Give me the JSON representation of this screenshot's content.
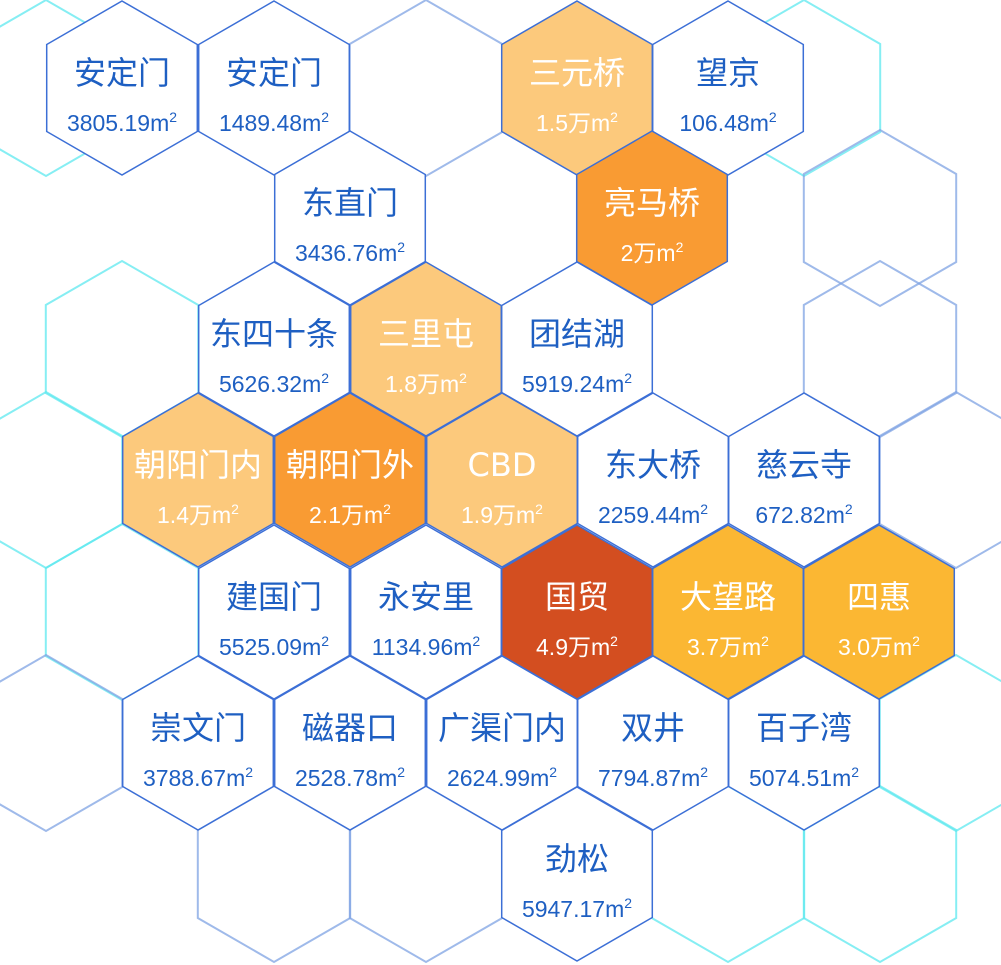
{
  "colors": {
    "text_blue": "#1e5fc2",
    "text_white": "#ffffff",
    "border_blue": "#3c6fd6",
    "frame_cyan": "#5ee8ef",
    "frame_blue": "#7fa3e3",
    "fill_white": "#ffffff",
    "fill_light_orange": "#fcc97c",
    "fill_orange": "#f99b33",
    "fill_amber": "#fbb733",
    "fill_dark_orange": "#d34e20"
  },
  "districts": [
    {
      "name": "安定门",
      "area_value": "3805.19",
      "area_unit": "m",
      "unit_power": "2",
      "fill": "white"
    },
    {
      "name": "安定门",
      "area_value": "1489.48",
      "area_unit": "m",
      "unit_power": "2",
      "fill": "white"
    },
    {
      "name": "三元桥",
      "area_value": "1.5万",
      "area_unit": "m",
      "unit_power": "2",
      "fill": "light_orange"
    },
    {
      "name": "望京",
      "area_value": "106.48",
      "area_unit": "m",
      "unit_power": "2",
      "fill": "white"
    },
    {
      "name": "东直门",
      "area_value": "3436.76",
      "area_unit": "m",
      "unit_power": "2",
      "fill": "white"
    },
    {
      "name": "亮马桥",
      "area_value": "2万",
      "area_unit": "m",
      "unit_power": "2",
      "fill": "orange"
    },
    {
      "name": "东四十条",
      "area_value": "5626.32",
      "area_unit": "m",
      "unit_power": "2",
      "fill": "white"
    },
    {
      "name": "三里屯",
      "area_value": "1.8万",
      "area_unit": "m",
      "unit_power": "2",
      "fill": "light_orange"
    },
    {
      "name": "团结湖",
      "area_value": "5919.24",
      "area_unit": "m",
      "unit_power": "2",
      "fill": "white"
    },
    {
      "name": "朝阳门内",
      "area_value": "1.4万",
      "area_unit": "m",
      "unit_power": "2",
      "fill": "light_orange"
    },
    {
      "name": "朝阳门外",
      "area_value": "2.1万",
      "area_unit": "m",
      "unit_power": "2",
      "fill": "orange"
    },
    {
      "name": "CBD",
      "area_value": "1.9万",
      "area_unit": "m",
      "unit_power": "2",
      "fill": "light_orange"
    },
    {
      "name": "东大桥",
      "area_value": "2259.44",
      "area_unit": "m",
      "unit_power": "2",
      "fill": "white"
    },
    {
      "name": "慈云寺",
      "area_value": "672.82",
      "area_unit": "m",
      "unit_power": "2",
      "fill": "white"
    },
    {
      "name": "建国门",
      "area_value": "5525.09",
      "area_unit": "m",
      "unit_power": "2",
      "fill": "white"
    },
    {
      "name": "永安里",
      "area_value": "1134.96",
      "area_unit": "m",
      "unit_power": "2",
      "fill": "white"
    },
    {
      "name": "国贸",
      "area_value": "4.9万",
      "area_unit": "m",
      "unit_power": "2",
      "fill": "dark_orange"
    },
    {
      "name": "大望路",
      "area_value": "3.7万",
      "area_unit": "m",
      "unit_power": "2",
      "fill": "amber"
    },
    {
      "name": "四惠",
      "area_value": "3.0万",
      "area_unit": "m",
      "unit_power": "2",
      "fill": "amber"
    },
    {
      "name": "崇文门",
      "area_value": "3788.67",
      "area_unit": "m",
      "unit_power": "2",
      "fill": "white"
    },
    {
      "name": "磁器口",
      "area_value": "2528.78",
      "area_unit": "m",
      "unit_power": "2",
      "fill": "white"
    },
    {
      "name": "广渠门内",
      "area_value": "2624.99",
      "area_unit": "m",
      "unit_power": "2",
      "fill": "white"
    },
    {
      "name": "双井",
      "area_value": "7794.87",
      "area_unit": "m",
      "unit_power": "2",
      "fill": "white"
    },
    {
      "name": "百子湾",
      "area_value": "5074.51",
      "area_unit": "m",
      "unit_power": "2",
      "fill": "white"
    },
    {
      "name": "劲松",
      "area_value": "5947.17",
      "area_unit": "m",
      "unit_power": "2",
      "fill": "white"
    }
  ]
}
